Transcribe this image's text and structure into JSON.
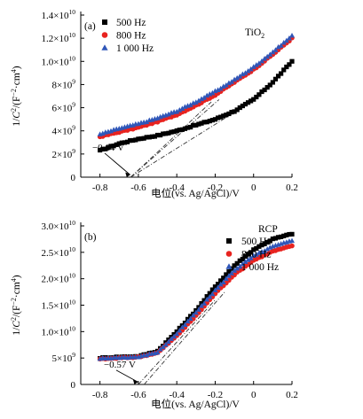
{
  "chart_data": [
    {
      "type": "scatter",
      "panel_label": "(a)",
      "material_label": "TiO",
      "material_sub": "2",
      "ylabel_main": "1/",
      "ylabel_italic": "C",
      "ylabel_sup": "2",
      "ylabel_unit": "/(F",
      "ylabel_unit_sup1": "−2",
      "ylabel_unit_mid": "·cm",
      "ylabel_unit_sup2": "4",
      "ylabel_unit_end": ")",
      "xlabel": "电位(vs. Ag/AgCl)/V",
      "xlim": [
        -0.9,
        0.2
      ],
      "ylim": [
        0,
        14000000000
      ],
      "x_ticks": [
        "-0.8",
        "-0.6",
        "-0.4",
        "-0.2",
        "0",
        "0.2"
      ],
      "x_tick_values": [
        -0.8,
        -0.6,
        -0.4,
        -0.2,
        0,
        0.2
      ],
      "y_ticks": [
        {
          "value": 0,
          "mant": "0",
          "exp": ""
        },
        {
          "value": 2000000000,
          "mant": "2×10",
          "exp": "9"
        },
        {
          "value": 4000000000,
          "mant": "4×10",
          "exp": "9"
        },
        {
          "value": 6000000000,
          "mant": "6×10",
          "exp": "9"
        },
        {
          "value": 8000000000,
          "mant": "8×10",
          "exp": "9"
        },
        {
          "value": 10000000000,
          "mant": "1.0×10",
          "exp": "10"
        },
        {
          "value": 12000000000,
          "mant": "1.2×10",
          "exp": "10"
        },
        {
          "value": 14000000000,
          "mant": "1.4×10",
          "exp": "10"
        }
      ],
      "legend_position": "top-left",
      "series": [
        {
          "name": "500 Hz",
          "color": "#000000",
          "marker": "square",
          "x": [
            -0.8,
            -0.7,
            -0.6,
            -0.5,
            -0.4,
            -0.3,
            -0.2,
            -0.1,
            0.0,
            0.1,
            0.2
          ],
          "y": [
            2300000000,
            2900000000,
            3300000000,
            3600000000,
            4000000000,
            4500000000,
            5000000000,
            5700000000,
            6700000000,
            8200000000,
            10000000000
          ]
        },
        {
          "name": "800 Hz",
          "color": "#e8231f",
          "marker": "circle",
          "x": [
            -0.8,
            -0.7,
            -0.6,
            -0.5,
            -0.4,
            -0.3,
            -0.2,
            -0.1,
            0.0,
            0.1,
            0.2
          ],
          "y": [
            3500000000,
            3900000000,
            4300000000,
            4800000000,
            5400000000,
            6200000000,
            7100000000,
            8200000000,
            9300000000,
            10600000000,
            12000000000
          ]
        },
        {
          "name": "1 000 Hz",
          "color": "#2f56b8",
          "marker": "triangle",
          "x": [
            -0.8,
            -0.7,
            -0.6,
            -0.5,
            -0.4,
            -0.3,
            -0.2,
            -0.1,
            0.0,
            0.1,
            0.2
          ],
          "y": [
            3700000000,
            4200000000,
            4600000000,
            5100000000,
            5700000000,
            6500000000,
            7400000000,
            8400000000,
            9500000000,
            10800000000,
            12200000000
          ]
        }
      ],
      "fit_lines": [
        {
          "x": [
            -0.64,
            -0.22
          ],
          "y": [
            0,
            6500000000
          ]
        },
        {
          "x": [
            -0.64,
            -0.18
          ],
          "y": [
            0,
            6700000000
          ]
        },
        {
          "x": [
            -0.64,
            -0.1
          ],
          "y": [
            0,
            5600000000
          ]
        }
      ],
      "annotation": {
        "text": "−0.64 V",
        "x": -0.64,
        "y": 0,
        "label_x": -0.84,
        "label_y": 2300000000
      }
    },
    {
      "type": "scatter",
      "panel_label": "(b)",
      "material_label": "RCP",
      "material_sub": "",
      "ylabel_main": "1/",
      "ylabel_italic": "C",
      "ylabel_sup": "2",
      "ylabel_unit": "/(F",
      "ylabel_unit_sup1": "−2",
      "ylabel_unit_mid": "·cm",
      "ylabel_unit_sup2": "4",
      "ylabel_unit_end": ")",
      "xlabel": "电位(vs. Ag/AgCl)/V",
      "xlim": [
        -0.9,
        0.2
      ],
      "ylim": [
        0,
        30000000000
      ],
      "x_ticks": [
        "-0.8",
        "-0.6",
        "-0.4",
        "-0.2",
        "0",
        "0.2"
      ],
      "x_tick_values": [
        -0.8,
        -0.6,
        -0.4,
        -0.2,
        0,
        0.2
      ],
      "y_ticks": [
        {
          "value": 0,
          "mant": "0",
          "exp": ""
        },
        {
          "value": 5000000000,
          "mant": "5×10",
          "exp": "9"
        },
        {
          "value": 10000000000,
          "mant": "1.0×10",
          "exp": "10"
        },
        {
          "value": 15000000000,
          "mant": "1.5×10",
          "exp": "10"
        },
        {
          "value": 20000000000,
          "mant": "2.0×10",
          "exp": "10"
        },
        {
          "value": 25000000000,
          "mant": "2.5×10",
          "exp": "10"
        },
        {
          "value": 30000000000,
          "mant": "3.0×10",
          "exp": "10"
        }
      ],
      "legend_position": "top-right",
      "series": [
        {
          "name": "500 Hz",
          "color": "#000000",
          "marker": "square",
          "x": [
            -0.8,
            -0.7,
            -0.6,
            -0.5,
            -0.4,
            -0.3,
            -0.2,
            -0.1,
            0.0,
            0.1,
            0.2
          ],
          "y": [
            5000000000,
            5200000000,
            5300000000,
            6300000000,
            10000000000,
            14000000000,
            18500000000,
            22500000000,
            25500000000,
            27500000000,
            28500000000
          ]
        },
        {
          "name": "800 Hz",
          "color": "#e8231f",
          "marker": "circle",
          "x": [
            -0.8,
            -0.7,
            -0.6,
            -0.5,
            -0.4,
            -0.3,
            -0.2,
            -0.1,
            0.0,
            0.1,
            0.2
          ],
          "y": [
            4800000000,
            5000000000,
            5200000000,
            6000000000,
            9200000000,
            13000000000,
            17200000000,
            20800000000,
            23500000000,
            25200000000,
            26200000000
          ]
        },
        {
          "name": "1 000 Hz",
          "color": "#2f56b8",
          "marker": "triangle",
          "x": [
            -0.8,
            -0.7,
            -0.6,
            -0.5,
            -0.4,
            -0.3,
            -0.2,
            -0.1,
            0.0,
            0.1,
            0.2
          ],
          "y": [
            4900000000,
            5100000000,
            5200000000,
            6100000000,
            9600000000,
            13600000000,
            17800000000,
            21600000000,
            24300000000,
            26100000000,
            27200000000
          ]
        }
      ],
      "fit_lines": [
        {
          "x": [
            -0.57,
            -0.15
          ],
          "y": [
            0,
            17500000000
          ]
        },
        {
          "x": [
            -0.6,
            -0.2
          ],
          "y": [
            0,
            16000000000
          ]
        }
      ],
      "annotation": {
        "text": "−0.57 V",
        "x": -0.6,
        "y": 0,
        "label_x": -0.78,
        "label_y": 3200000000
      }
    }
  ]
}
